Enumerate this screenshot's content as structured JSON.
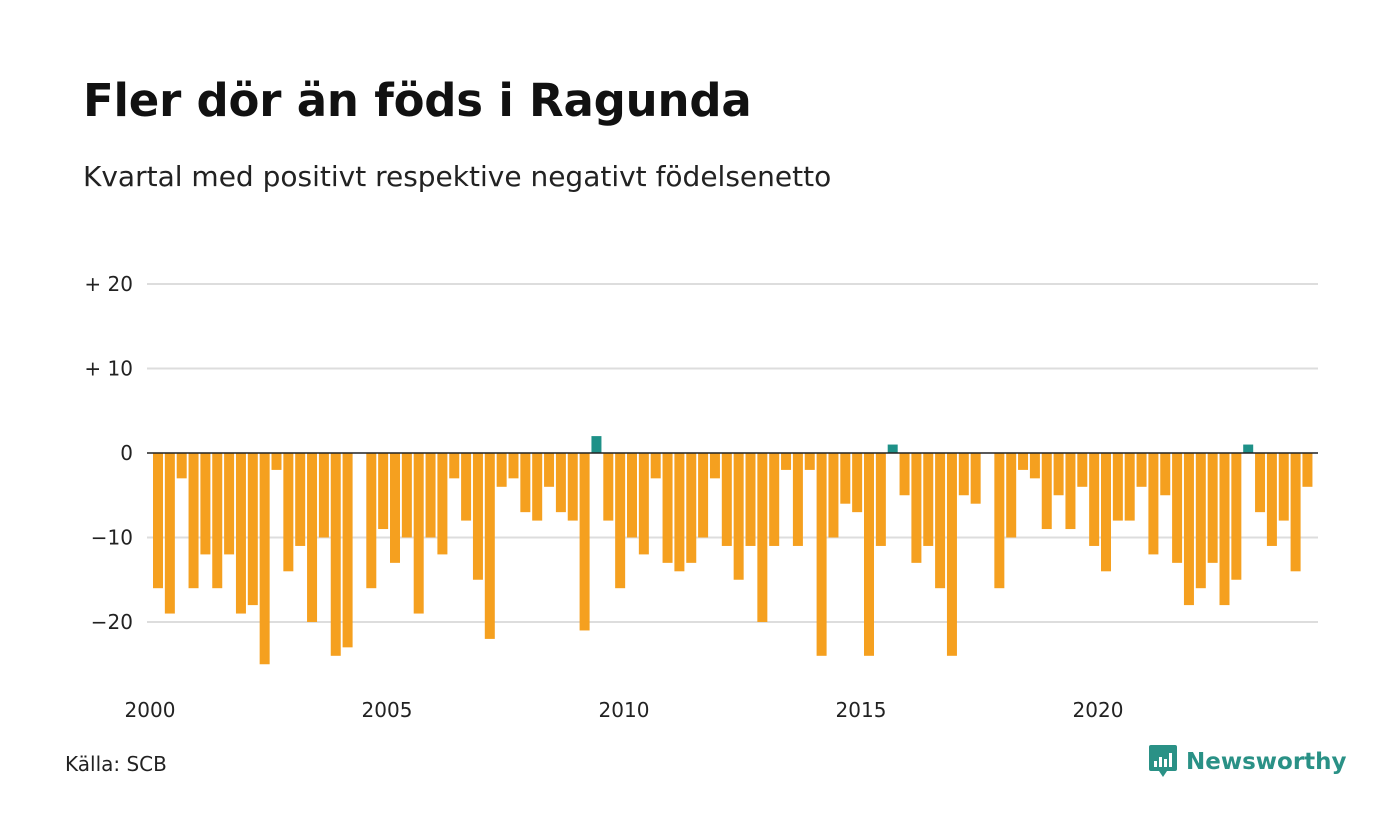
{
  "title": "Fler dör än föds i Ragunda",
  "subtitle": "Kvartal med positivt respektive negativt födelsenetto",
  "source": "Källa: SCB",
  "brand": {
    "name": "Newsworthy",
    "icon": "newsworthy-logo-icon"
  },
  "colors": {
    "negative": "#F5A01F",
    "positive": "#1E9188",
    "grid": "#DDDDDD",
    "zero_line": "#222222"
  },
  "chart_data": {
    "type": "bar",
    "title": "Fler dör än föds i Ragunda",
    "subtitle": "Kvartal med positivt respektive negativt födelsenetto",
    "xlabel": "",
    "ylabel": "",
    "ylim": [
      -27,
      20
    ],
    "yticks": [
      {
        "value": 20,
        "label": "+ 20"
      },
      {
        "value": 10,
        "label": "+ 10"
      },
      {
        "value": 0,
        "label": "0"
      },
      {
        "value": -10,
        "label": "−10"
      },
      {
        "value": -20,
        "label": "−20"
      }
    ],
    "xticks": [
      {
        "year": 2000,
        "label": "2000"
      },
      {
        "year": 2005,
        "label": "2005"
      },
      {
        "year": 2010,
        "label": "2010"
      },
      {
        "year": 2015,
        "label": "2015"
      },
      {
        "year": 2020,
        "label": "2020"
      }
    ],
    "grid": true,
    "start_year": 2000,
    "periods_per_year": 4,
    "values": [
      -16,
      -19,
      -3,
      -16,
      -12,
      -16,
      -12,
      -19,
      -18,
      -25,
      -2,
      -14,
      -11,
      -20,
      -10,
      -24,
      -23,
      0,
      -16,
      -9,
      -13,
      -10,
      -19,
      -10,
      -12,
      -3,
      -8,
      -15,
      -22,
      -4,
      -3,
      -7,
      -8,
      -4,
      -7,
      -8,
      -21,
      2,
      -8,
      -16,
      -10,
      -12,
      -3,
      -13,
      -14,
      -13,
      -10,
      -3,
      -11,
      -15,
      -11,
      -20,
      -11,
      -2,
      -11,
      -2,
      -24,
      -10,
      -6,
      -7,
      -24,
      -11,
      1,
      -5,
      -13,
      -11,
      -16,
      -24,
      -5,
      -6,
      0,
      -16,
      -10,
      -2,
      -3,
      -9,
      -5,
      -9,
      -4,
      -11,
      -14,
      -8,
      -8,
      -4,
      -12,
      -5,
      -13,
      -18,
      -16,
      -13,
      -18,
      -15,
      1,
      -7,
      -11,
      -8,
      -14,
      -4
    ]
  }
}
